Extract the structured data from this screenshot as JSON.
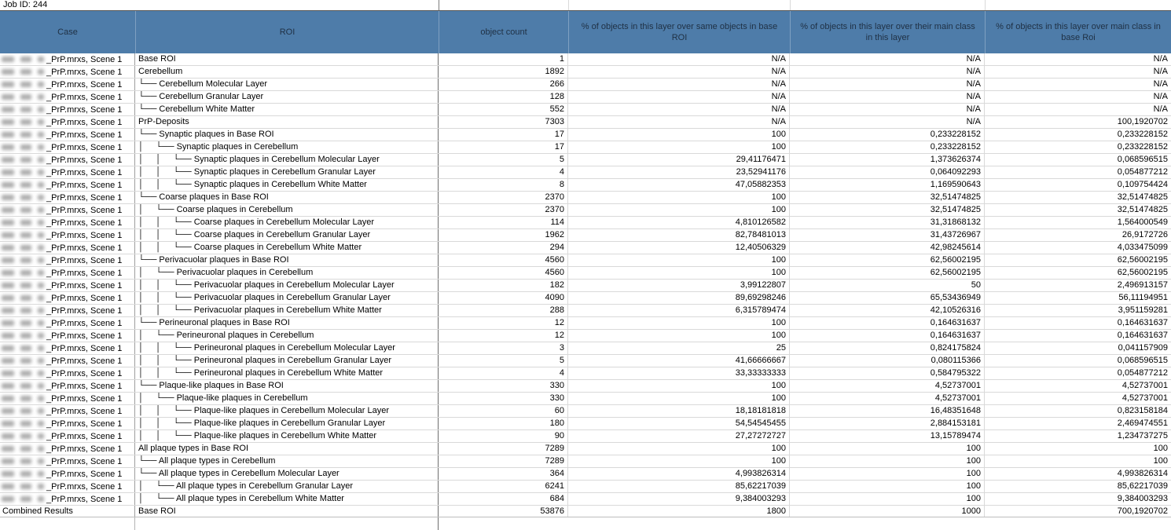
{
  "job": {
    "label": "Job ID: 244"
  },
  "colors": {
    "header_bg": "#4e7ca9",
    "header_text": "#1f3044",
    "gridline_light": "#d9d9d9",
    "gridline_dark": "#6e6e6e"
  },
  "table": {
    "columns": [
      "Case",
      "ROI",
      "object count",
      "% of objects in this layer over same objects in base ROI",
      "% of objects in this layer over their main class in this layer",
      "% of objects in this layer over main class in base Roi"
    ],
    "case_label": "_PrP.mrxs, Scene 1",
    "rows": [
      {
        "depth": 0,
        "roi": "Base ROI",
        "count": "1",
        "pct_same_base": "N/A",
        "pct_class_layer": "N/A",
        "pct_class_base": "N/A"
      },
      {
        "depth": 0,
        "roi": "Cerebellum",
        "count": "1892",
        "pct_same_base": "N/A",
        "pct_class_layer": "N/A",
        "pct_class_base": "N/A"
      },
      {
        "depth": 1,
        "roi": "Cerebellum Molecular Layer",
        "count": "266",
        "pct_same_base": "N/A",
        "pct_class_layer": "N/A",
        "pct_class_base": "N/A"
      },
      {
        "depth": 1,
        "roi": "Cerebellum Granular Layer",
        "count": "128",
        "pct_same_base": "N/A",
        "pct_class_layer": "N/A",
        "pct_class_base": "N/A"
      },
      {
        "depth": 1,
        "roi": "Cerebellum White Matter",
        "count": "552",
        "pct_same_base": "N/A",
        "pct_class_layer": "N/A",
        "pct_class_base": "N/A"
      },
      {
        "depth": 0,
        "roi": "PrP-Deposits",
        "count": "7303",
        "pct_same_base": "N/A",
        "pct_class_layer": "N/A",
        "pct_class_base": "100,1920702"
      },
      {
        "depth": 1,
        "roi": "Synaptic plaques in Base ROI",
        "count": "17",
        "pct_same_base": "100",
        "pct_class_layer": "0,233228152",
        "pct_class_base": "0,233228152"
      },
      {
        "depth": 2,
        "roi": "Synaptic plaques in Cerebellum",
        "count": "17",
        "pct_same_base": "100",
        "pct_class_layer": "0,233228152",
        "pct_class_base": "0,233228152"
      },
      {
        "depth": 3,
        "roi": "Synaptic plaques in Cerebellum Molecular Layer",
        "count": "5",
        "pct_same_base": "29,41176471",
        "pct_class_layer": "1,373626374",
        "pct_class_base": "0,068596515"
      },
      {
        "depth": 3,
        "roi": "Synaptic plaques in Cerebellum Granular Layer",
        "count": "4",
        "pct_same_base": "23,52941176",
        "pct_class_layer": "0,064092293",
        "pct_class_base": "0,054877212"
      },
      {
        "depth": 3,
        "roi": "Synaptic plaques in Cerebellum White Matter",
        "count": "8",
        "pct_same_base": "47,05882353",
        "pct_class_layer": "1,169590643",
        "pct_class_base": "0,109754424"
      },
      {
        "depth": 1,
        "roi": "Coarse plaques in Base ROI",
        "count": "2370",
        "pct_same_base": "100",
        "pct_class_layer": "32,51474825",
        "pct_class_base": "32,51474825"
      },
      {
        "depth": 2,
        "roi": "Coarse plaques in Cerebellum",
        "count": "2370",
        "pct_same_base": "100",
        "pct_class_layer": "32,51474825",
        "pct_class_base": "32,51474825"
      },
      {
        "depth": 3,
        "roi": "Coarse plaques in Cerebellum Molecular Layer",
        "count": "114",
        "pct_same_base": "4,810126582",
        "pct_class_layer": "31,31868132",
        "pct_class_base": "1,564000549"
      },
      {
        "depth": 3,
        "roi": "Coarse plaques in Cerebellum Granular Layer",
        "count": "1962",
        "pct_same_base": "82,78481013",
        "pct_class_layer": "31,43726967",
        "pct_class_base": "26,9172726"
      },
      {
        "depth": 3,
        "roi": "Coarse plaques in Cerebellum White Matter",
        "count": "294",
        "pct_same_base": "12,40506329",
        "pct_class_layer": "42,98245614",
        "pct_class_base": "4,033475099"
      },
      {
        "depth": 1,
        "roi": "Perivacuolar plaques in Base ROI",
        "count": "4560",
        "pct_same_base": "100",
        "pct_class_layer": "62,56002195",
        "pct_class_base": "62,56002195"
      },
      {
        "depth": 2,
        "roi": "Perivacuolar plaques in Cerebellum",
        "count": "4560",
        "pct_same_base": "100",
        "pct_class_layer": "62,56002195",
        "pct_class_base": "62,56002195"
      },
      {
        "depth": 3,
        "roi": "Perivacuolar plaques in Cerebellum Molecular Layer",
        "count": "182",
        "pct_same_base": "3,99122807",
        "pct_class_layer": "50",
        "pct_class_base": "2,496913157"
      },
      {
        "depth": 3,
        "roi": "Perivacuolar plaques in Cerebellum Granular Layer",
        "count": "4090",
        "pct_same_base": "89,69298246",
        "pct_class_layer": "65,53436949",
        "pct_class_base": "56,11194951"
      },
      {
        "depth": 3,
        "roi": "Perivacuolar plaques in Cerebellum White Matter",
        "count": "288",
        "pct_same_base": "6,315789474",
        "pct_class_layer": "42,10526316",
        "pct_class_base": "3,951159281"
      },
      {
        "depth": 1,
        "roi": "Perineuronal plaques in Base ROI",
        "count": "12",
        "pct_same_base": "100",
        "pct_class_layer": "0,164631637",
        "pct_class_base": "0,164631637"
      },
      {
        "depth": 2,
        "roi": "Perineuronal plaques in Cerebellum",
        "count": "12",
        "pct_same_base": "100",
        "pct_class_layer": "0,164631637",
        "pct_class_base": "0,164631637"
      },
      {
        "depth": 3,
        "roi": "Perineuronal plaques in Cerebellum Molecular Layer",
        "count": "3",
        "pct_same_base": "25",
        "pct_class_layer": "0,824175824",
        "pct_class_base": "0,041157909"
      },
      {
        "depth": 3,
        "roi": "Perineuronal plaques in Cerebellum Granular Layer",
        "count": "5",
        "pct_same_base": "41,66666667",
        "pct_class_layer": "0,080115366",
        "pct_class_base": "0,068596515"
      },
      {
        "depth": 3,
        "roi": "Perineuronal plaques in Cerebellum White Matter",
        "count": "4",
        "pct_same_base": "33,33333333",
        "pct_class_layer": "0,584795322",
        "pct_class_base": "0,054877212"
      },
      {
        "depth": 1,
        "roi": "Plaque-like plaques in Base ROI",
        "count": "330",
        "pct_same_base": "100",
        "pct_class_layer": "4,52737001",
        "pct_class_base": "4,52737001"
      },
      {
        "depth": 2,
        "roi": "Plaque-like plaques in Cerebellum",
        "count": "330",
        "pct_same_base": "100",
        "pct_class_layer": "4,52737001",
        "pct_class_base": "4,52737001"
      },
      {
        "depth": 3,
        "roi": "Plaque-like plaques in Cerebellum Molecular Layer",
        "count": "60",
        "pct_same_base": "18,18181818",
        "pct_class_layer": "16,48351648",
        "pct_class_base": "0,823158184"
      },
      {
        "depth": 3,
        "roi": "Plaque-like plaques in Cerebellum Granular Layer",
        "count": "180",
        "pct_same_base": "54,54545455",
        "pct_class_layer": "2,884153181",
        "pct_class_base": "2,469474551"
      },
      {
        "depth": 3,
        "roi": "Plaque-like plaques in Cerebellum White Matter",
        "count": "90",
        "pct_same_base": "27,27272727",
        "pct_class_layer": "13,15789474",
        "pct_class_base": "1,234737275"
      },
      {
        "depth": 0,
        "roi": "All plaque types in Base ROI",
        "count": "7289",
        "pct_same_base": "100",
        "pct_class_layer": "100",
        "pct_class_base": "100"
      },
      {
        "depth": 1,
        "roi": "All plaque types in Cerebellum",
        "count": "7289",
        "pct_same_base": "100",
        "pct_class_layer": "100",
        "pct_class_base": "100"
      },
      {
        "depth": 1,
        "roi": "All plaque types in Cerebellum Molecular Layer",
        "count": "364",
        "pct_same_base": "4,993826314",
        "pct_class_layer": "100",
        "pct_class_base": "4,993826314"
      },
      {
        "depth": 2,
        "roi": "All plaque types in Cerebellum Granular Layer",
        "count": "6241",
        "pct_same_base": "85,62217039",
        "pct_class_layer": "100",
        "pct_class_base": "85,62217039"
      },
      {
        "depth": 2,
        "roi": "All plaque types in Cerebellum White Matter",
        "count": "684",
        "pct_same_base": "9,384003293",
        "pct_class_layer": "100",
        "pct_class_base": "9,384003293"
      }
    ],
    "footer": {
      "case": "Combined Results",
      "roi": "Base ROI",
      "count": "53876",
      "pct_same_base": "1800",
      "pct_class_layer": "1000",
      "pct_class_base": "700,1920702"
    }
  }
}
